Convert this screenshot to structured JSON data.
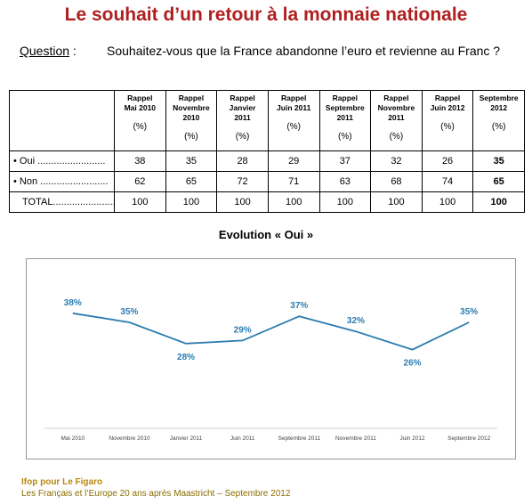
{
  "title": "Le souhait d’un retour à la monnaie nationale",
  "question": {
    "label": "Question",
    "separator": " :",
    "text": "Souhaitez-vous que la France abandonne l’euro et revienne au Franc ?"
  },
  "table": {
    "headers": [
      {
        "line1": "Rappel",
        "line2": "Mai 2010",
        "line3": "",
        "unit": "(%)"
      },
      {
        "line1": "Rappel",
        "line2": "Novembre",
        "line3": "2010",
        "unit": "(%)"
      },
      {
        "line1": "Rappel",
        "line2": "Janvier",
        "line3": "2011",
        "unit": "(%)"
      },
      {
        "line1": "Rappel",
        "line2": "Juin 2011",
        "line3": "",
        "unit": "(%)"
      },
      {
        "line1": "Rappel",
        "line2": "Septembre",
        "line3": "2011",
        "unit": "(%)"
      },
      {
        "line1": "Rappel",
        "line2": "Novembre",
        "line3": "2011",
        "unit": "(%)"
      },
      {
        "line1": "Rappel",
        "line2": "Juin 2012",
        "line3": "",
        "unit": "(%)"
      },
      {
        "line1": "Septembre",
        "line2": "2012",
        "line3": "",
        "unit": "(%)"
      }
    ],
    "rows": [
      {
        "label": "• Oui .........................",
        "values": [
          "38",
          "35",
          "28",
          "29",
          "37",
          "32",
          "26",
          "35"
        ]
      },
      {
        "label": "• Non .........................",
        "values": [
          "62",
          "65",
          "72",
          "71",
          "63",
          "68",
          "74",
          "65"
        ]
      },
      {
        "label": "TOTAL.........................",
        "values": [
          "100",
          "100",
          "100",
          "100",
          "100",
          "100",
          "100",
          "100"
        ]
      }
    ]
  },
  "chart_title": "Evolution « Oui »",
  "chart_data": {
    "type": "line",
    "title": "Evolution « Oui »",
    "categories": [
      "Mai 2010",
      "Novembre 2010",
      "Janvier 2011",
      "Juin 2011",
      "Septembre 2011",
      "Novembre 2011",
      "Juin 2012",
      "Septembre 2012"
    ],
    "series": [
      {
        "name": "",
        "values": [
          38,
          35,
          28,
          29,
          37,
          32,
          26,
          35
        ],
        "labels": [
          "38%",
          "35%",
          "28%",
          "29%",
          "37%",
          "32%",
          "26%",
          "35%"
        ]
      }
    ],
    "ylim": [
      0,
      50
    ],
    "grid": false,
    "line_color": "#2b7cb0",
    "label_color": "#2b7cb0"
  },
  "footer": {
    "source": "Ifop pour Le Figaro",
    "study": "Les Français et l’Europe 20 ans après Maastricht – Septembre 2012"
  }
}
